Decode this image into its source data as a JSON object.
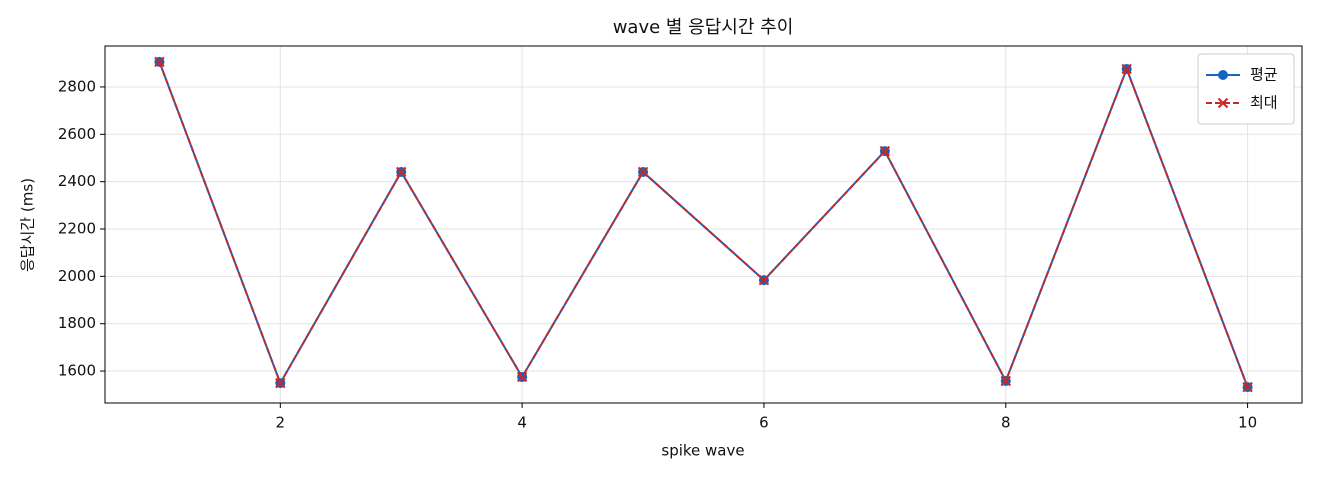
{
  "chart_data": {
    "type": "line",
    "title": "wave 별 응답시간 추이",
    "x_label": "spike wave",
    "y_label": "응답시간 (ms)",
    "x": [
      1,
      2,
      3,
      4,
      5,
      6,
      7,
      8,
      9,
      10
    ],
    "series": [
      {
        "name": "평균",
        "color": "#1565c0",
        "marker": "circle",
        "dash": false,
        "values": [
          2906,
          1549,
          2441,
          1575,
          2441,
          1984,
          2529,
          1558,
          2876,
          1532
        ]
      },
      {
        "name": "최대",
        "color": "#c62828",
        "marker": "x",
        "dash": true,
        "values": [
          2906,
          1549,
          2441,
          1575,
          2441,
          1984,
          2529,
          1558,
          2876,
          1532
        ]
      }
    ],
    "xlim": [
      0.55,
      10.45
    ],
    "xticks": [
      2,
      4,
      6,
      8,
      10
    ],
    "ylim": [
      1465,
      2973
    ],
    "yticks": [
      1600,
      1800,
      2000,
      2200,
      2400,
      2600,
      2800
    ],
    "grid": true,
    "legend": "upper right"
  }
}
